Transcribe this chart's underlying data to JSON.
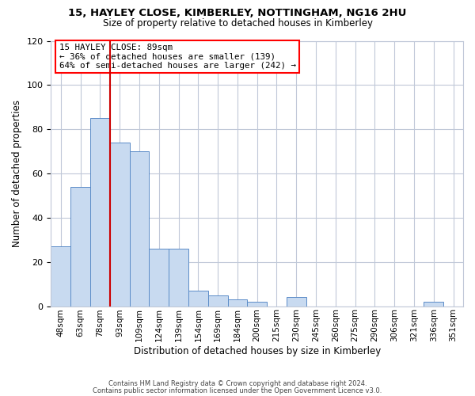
{
  "title": "15, HAYLEY CLOSE, KIMBERLEY, NOTTINGHAM, NG16 2HU",
  "subtitle": "Size of property relative to detached houses in Kimberley",
  "xlabel": "Distribution of detached houses by size in Kimberley",
  "ylabel": "Number of detached properties",
  "bin_labels": [
    "48sqm",
    "63sqm",
    "78sqm",
    "93sqm",
    "109sqm",
    "124sqm",
    "139sqm",
    "154sqm",
    "169sqm",
    "184sqm",
    "200sqm",
    "215sqm",
    "230sqm",
    "245sqm",
    "260sqm",
    "275sqm",
    "290sqm",
    "306sqm",
    "321sqm",
    "336sqm",
    "351sqm"
  ],
  "bar_values": [
    27,
    54,
    85,
    74,
    70,
    26,
    26,
    7,
    5,
    3,
    2,
    0,
    4,
    0,
    0,
    0,
    0,
    0,
    0,
    2,
    0
  ],
  "bar_color": "#c8daf0",
  "bar_edge_color": "#5b8cc8",
  "ylim": [
    0,
    120
  ],
  "yticks": [
    0,
    20,
    40,
    60,
    80,
    100,
    120
  ],
  "vline_x_index": 3,
  "vline_color": "#cc0000",
  "annotation_box_text": "15 HAYLEY CLOSE: 89sqm\n← 36% of detached houses are smaller (139)\n64% of semi-detached houses are larger (242) →",
  "footer_line1": "Contains HM Land Registry data © Crown copyright and database right 2024.",
  "footer_line2": "Contains public sector information licensed under the Open Government Licence v3.0.",
  "background_color": "#ffffff",
  "grid_color": "#c0c8d8"
}
